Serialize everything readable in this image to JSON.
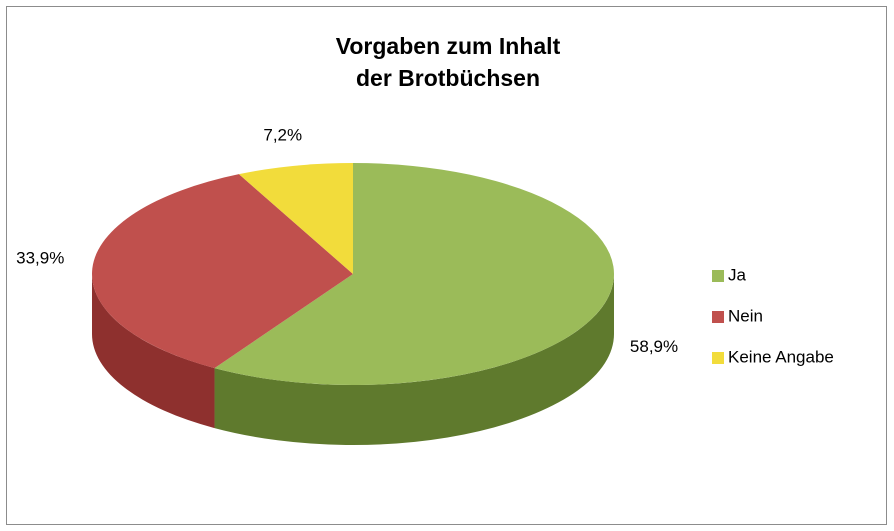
{
  "chart_data": {
    "type": "pie3d",
    "title": [
      "Vorgaben zum Inhalt",
      "der Brotbüchsen"
    ],
    "categories": [
      "Ja",
      "Nein",
      "Keine Angabe"
    ],
    "values": [
      58.9,
      33.9,
      7.2
    ],
    "value_labels": [
      "58,9%",
      "33,9%",
      "7,2%"
    ],
    "colors": [
      "#9bbb59",
      "#c0504d",
      "#f2dc3b"
    ],
    "side_colors": [
      "#5f7a2d",
      "#8e302e",
      "#b8a42a"
    ],
    "legend": "right"
  }
}
